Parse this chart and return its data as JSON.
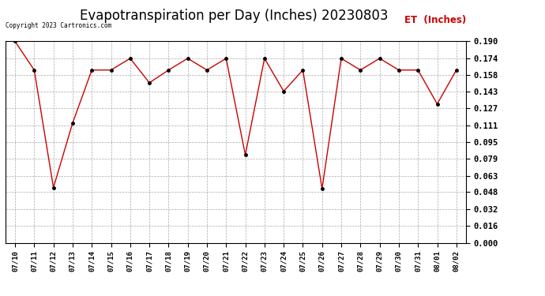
{
  "title": "Evapotranspiration per Day (Inches) 20230803",
  "legend_label": "ET  (Inches)",
  "copyright_text": "Copyright 2023 Cartronics.com",
  "x_labels": [
    "07/10",
    "07/11",
    "07/12",
    "07/13",
    "07/14",
    "07/15",
    "07/16",
    "07/17",
    "07/18",
    "07/19",
    "07/20",
    "07/21",
    "07/22",
    "07/23",
    "07/24",
    "07/25",
    "07/26",
    "07/27",
    "07/28",
    "07/29",
    "07/30",
    "07/31",
    "08/01",
    "08/02"
  ],
  "y_values": [
    0.19,
    0.163,
    0.052,
    0.113,
    0.163,
    0.163,
    0.174,
    0.151,
    0.163,
    0.174,
    0.163,
    0.174,
    0.083,
    0.174,
    0.143,
    0.163,
    0.051,
    0.174,
    0.163,
    0.174,
    0.163,
    0.163,
    0.131,
    0.163
  ],
  "line_color": "#cc0000",
  "marker_color": "#000000",
  "background_color": "#ffffff",
  "grid_color": "#aaaaaa",
  "title_fontsize": 12,
  "legend_color": "#cc0000",
  "copyright_color": "#000000",
  "ylim_min": 0.0,
  "ylim_max": 0.19,
  "yticks": [
    0.0,
    0.016,
    0.032,
    0.048,
    0.063,
    0.079,
    0.095,
    0.111,
    0.127,
    0.143,
    0.158,
    0.174,
    0.19
  ]
}
